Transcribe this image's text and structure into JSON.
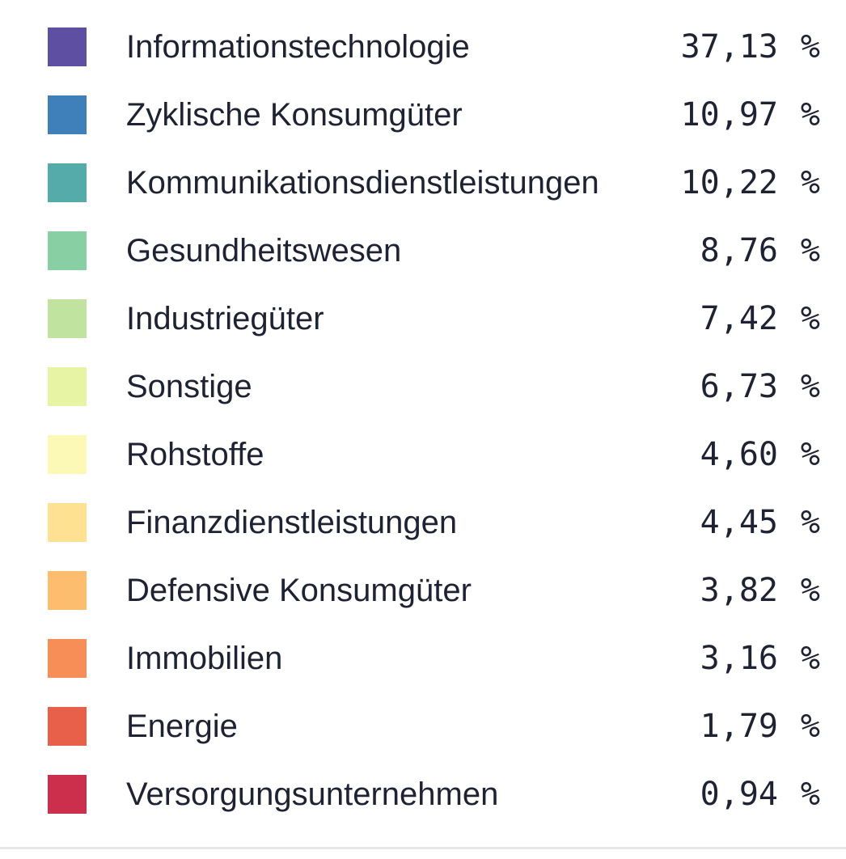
{
  "legend": {
    "unit": "%",
    "items": [
      {
        "label": "Informationstechnologie",
        "value": "37,13",
        "color": "#5e4fa2"
      },
      {
        "label": "Zyklische Konsumgüter",
        "value": "10,97",
        "color": "#3f7fba"
      },
      {
        "label": "Kommunikationsdienstleistungen",
        "value": "10,22",
        "color": "#55aaaa"
      },
      {
        "label": "Gesundheitswesen",
        "value": "8,76",
        "color": "#88cfa4"
      },
      {
        "label": "Industriegüter",
        "value": "7,42",
        "color": "#c0e3a0"
      },
      {
        "label": "Sonstige",
        "value": "6,73",
        "color": "#e7f4a3"
      },
      {
        "label": "Rohstoffe",
        "value": "4,60",
        "color": "#fcf8b5"
      },
      {
        "label": "Finanzdienstleistungen",
        "value": "4,45",
        "color": "#fee192"
      },
      {
        "label": "Defensive Konsumgüter",
        "value": "3,82",
        "color": "#fdbd6f"
      },
      {
        "label": "Immobilien",
        "value": "3,16",
        "color": "#f88e57"
      },
      {
        "label": "Energie",
        "value": "1,79",
        "color": "#e8604a"
      },
      {
        "label": "Versorgungsunternehmen",
        "value": "0,94",
        "color": "#cb2f4b"
      }
    ]
  }
}
